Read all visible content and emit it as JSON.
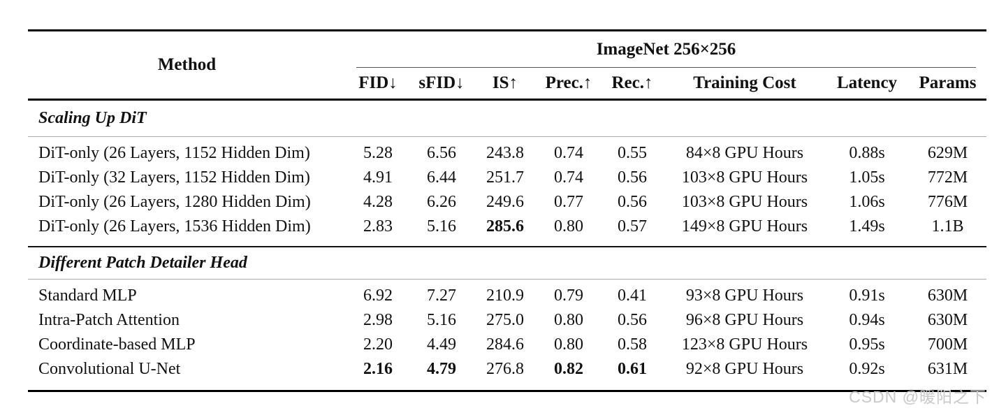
{
  "table": {
    "method_header": "Method",
    "span_header": "ImageNet 256×256",
    "columns": {
      "fid": "FID↓",
      "sfid": "sFID↓",
      "is": "IS↑",
      "prec": "Prec.↑",
      "rec": "Rec.↑",
      "cost": "Training Cost",
      "latency": "Latency",
      "params": "Params"
    },
    "sections": [
      {
        "title": "Scaling Up DiT",
        "rows": [
          {
            "method": "DiT-only (26 Layers, 1152 Hidden Dim)",
            "cells": [
              "5.28",
              "6.56",
              "243.8",
              "0.74",
              "0.55",
              "84×8 GPU Hours",
              "0.88s",
              "629M"
            ]
          },
          {
            "method": "DiT-only (32 Layers, 1152 Hidden Dim)",
            "cells": [
              "4.91",
              "6.44",
              "251.7",
              "0.74",
              "0.56",
              "103×8 GPU Hours",
              "1.05s",
              "772M"
            ]
          },
          {
            "method": "DiT-only (26 Layers, 1280 Hidden Dim)",
            "cells": [
              "4.28",
              "6.26",
              "249.6",
              "0.77",
              "0.56",
              "103×8 GPU Hours",
              "1.06s",
              "776M"
            ]
          },
          {
            "method": "DiT-only (26 Layers, 1536 Hidden Dim)",
            "cells": [
              "2.83",
              "5.16",
              "285.6",
              "0.80",
              "0.57",
              "149×8 GPU Hours",
              "1.49s",
              "1.1B"
            ]
          }
        ]
      },
      {
        "title": "Different Patch Detailer Head",
        "rows": [
          {
            "method": "Standard MLP",
            "cells": [
              "6.92",
              "7.27",
              "210.9",
              "0.79",
              "0.41",
              "93×8 GPU Hours",
              "0.91s",
              "630M"
            ]
          },
          {
            "method": "Intra-Patch Attention",
            "cells": [
              "2.98",
              "5.16",
              "275.0",
              "0.80",
              "0.56",
              "96×8 GPU Hours",
              "0.94s",
              "630M"
            ]
          },
          {
            "method": "Coordinate-based MLP",
            "cells": [
              "2.20",
              "4.49",
              "284.6",
              "0.80",
              "0.58",
              "123×8 GPU Hours",
              "0.95s",
              "700M"
            ]
          },
          {
            "method": "Convolutional U-Net",
            "cells": [
              "2.16",
              "4.79",
              "276.8",
              "0.82",
              "0.61",
              "92×8 GPU Hours",
              "0.92s",
              "631M"
            ]
          }
        ]
      }
    ]
  },
  "watermark": "CSDN @暖阳之下"
}
